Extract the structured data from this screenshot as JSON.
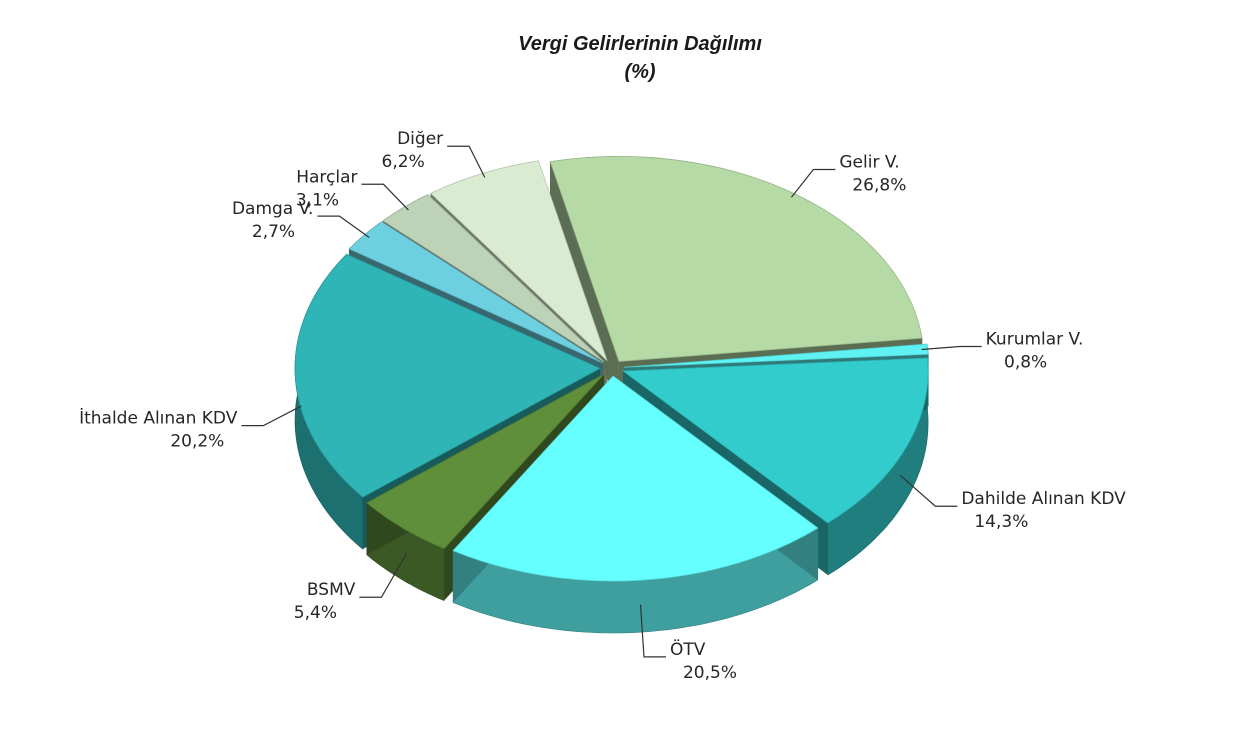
{
  "chart_data": {
    "type": "pie",
    "style": "3d-exploded",
    "title": "Vergi Gelirlerinin Dağılımı",
    "subtitle": "(%)",
    "unit": "%",
    "slices": [
      {
        "label": "Gelir V.",
        "value": 26.8,
        "display": "26,8%",
        "color": "#b6daa5"
      },
      {
        "label": "Kurumlar V.",
        "value": 0.8,
        "display": "0,8%",
        "color": "#5ff2f2"
      },
      {
        "label": "Dahilde Alınan KDV",
        "value": 14.3,
        "display": "14,3%",
        "color": "#33cccc"
      },
      {
        "label": "ÖTV",
        "value": 20.5,
        "display": "20,5%",
        "color": "#66ffff"
      },
      {
        "label": "BSMV",
        "value": 5.4,
        "display": "5,4%",
        "color": "#5f8f3a"
      },
      {
        "label": "İthalde Alınan KDV",
        "value": 20.2,
        "display": "20,2%",
        "color": "#2fb5b5"
      },
      {
        "label": "Damga V.",
        "value": 2.7,
        "display": "2,7%",
        "color": "#6dd0e0"
      },
      {
        "label": "Harçlar",
        "value": 3.1,
        "display": "3,1%",
        "color": "#bdd3b8"
      },
      {
        "label": "Diğer",
        "value": 6.2,
        "display": "6,2%",
        "color": "#d9ebd1"
      }
    ],
    "legend": "none",
    "data_labels": "outside-with-leaders"
  }
}
